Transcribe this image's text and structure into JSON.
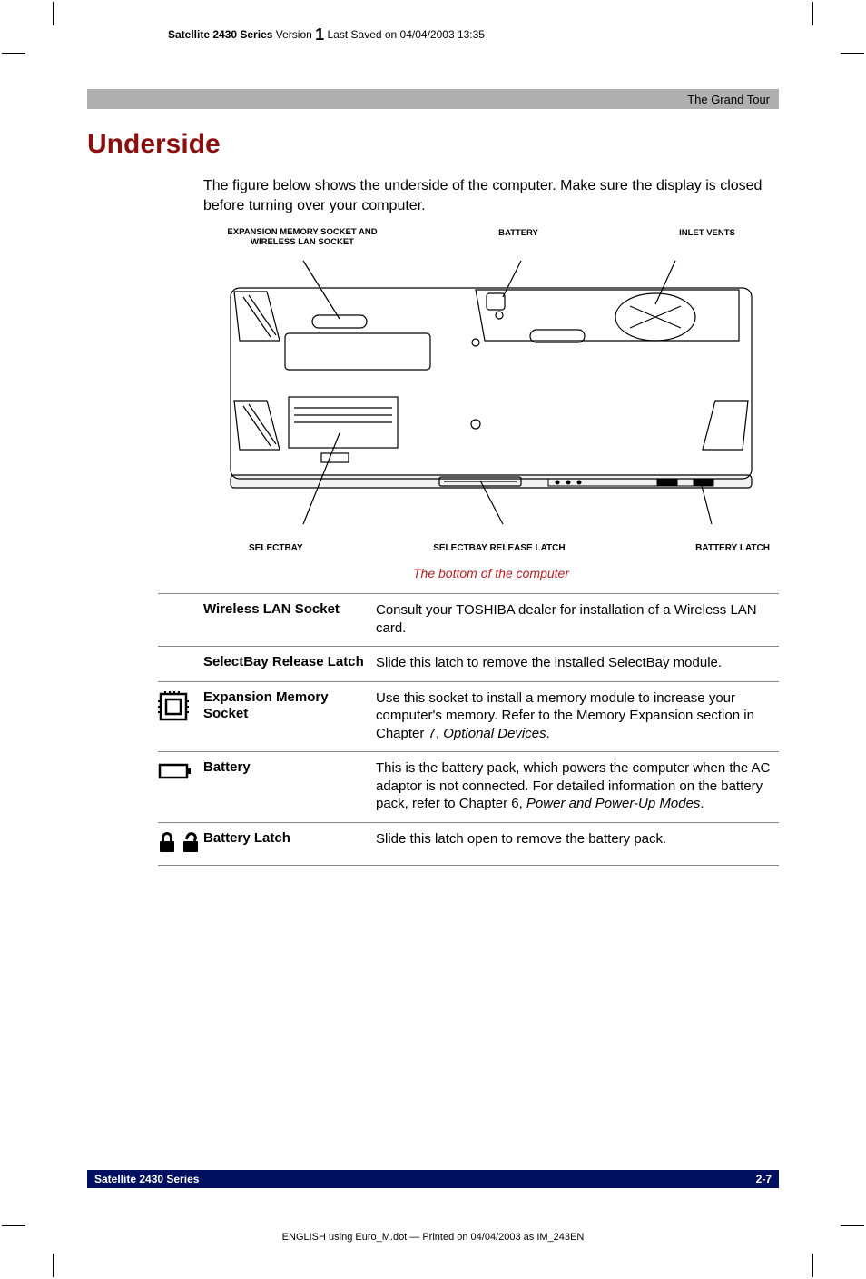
{
  "header": {
    "product": "Satellite 2430 Series",
    "version_label": "Version",
    "version_big": "1",
    "saved": "Last Saved on 04/04/2003 13:35"
  },
  "graybar": {
    "text": "The Grand Tour"
  },
  "title": "Underside",
  "intro": "The figure below shows the underside of the computer. Make sure the display is closed before turning over your computer.",
  "diagram": {
    "top_labels": {
      "l1a": "EXPANSION MEMORY SOCKET AND",
      "l1b": "WIRELESS LAN SOCKET",
      "l2": "BATTERY",
      "l3": "INLET VENTS"
    },
    "bottom_labels": {
      "b1": "SELECTBAY",
      "b2": "SELECTBAY RELEASE LATCH",
      "b3": "BATTERY LATCH"
    },
    "stroke": "#000000",
    "fill": "#ffffff"
  },
  "caption": "The bottom of the computer",
  "table": [
    {
      "icon": "none",
      "label": "Wireless LAN Socket",
      "desc": "Consult your TOSHIBA dealer for installation of a Wireless LAN card."
    },
    {
      "icon": "none",
      "label": "SelectBay Release Latch",
      "desc": "Slide this latch to remove the installed SelectBay module."
    },
    {
      "icon": "memory",
      "label": "Expansion Memory Socket",
      "desc_html": "Use this socket to install a memory module to increase your computer's memory. Refer to the Memory Expansion section in Chapter 7, <em>Optional Devices</em>."
    },
    {
      "icon": "battery",
      "label": "Battery",
      "desc_html": "This is the battery pack, which powers the computer when the AC adaptor is not connected. For detailed information on the battery pack, refer to Chapter 6, <em>Power and Power-Up Modes</em>."
    },
    {
      "icon": "latch",
      "label": "Battery Latch",
      "desc": "Slide this latch open to remove the battery pack."
    }
  ],
  "footer": {
    "left": "Satellite 2430 Series",
    "right": "2-7",
    "bottom": "ENGLISH using Euro_M.dot — Printed on 04/04/2003 as IM_243EN"
  },
  "colors": {
    "title_red": "#8a0f0f",
    "caption_red": "#b22020",
    "footer_blue": "#001060",
    "gray": "#b0b0b0",
    "rule": "#888888"
  }
}
